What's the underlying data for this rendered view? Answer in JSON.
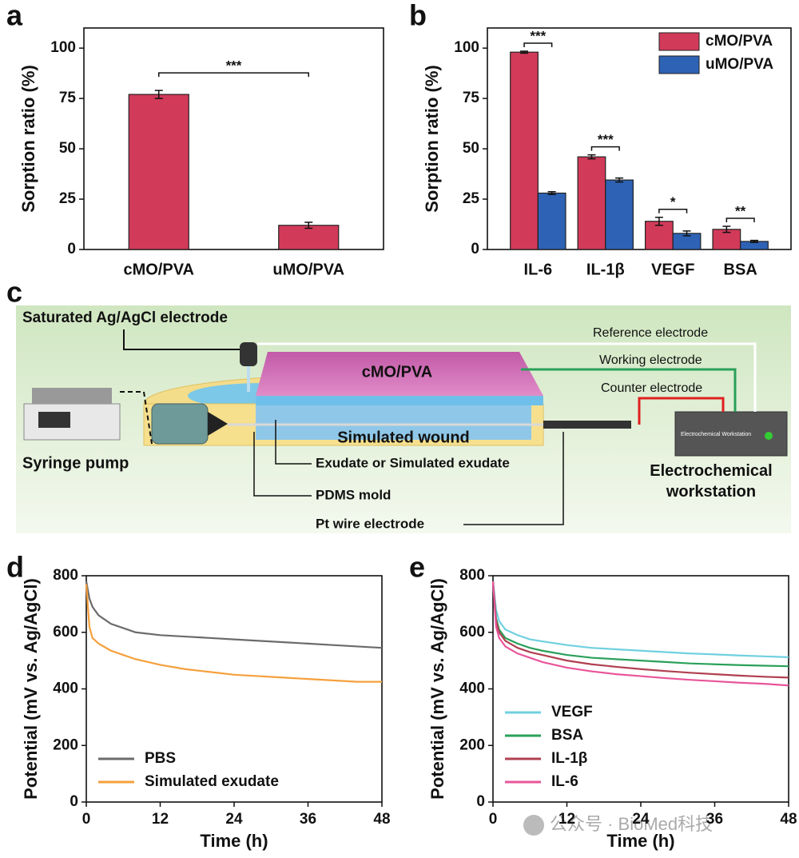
{
  "chart_data": [
    {
      "panel": "a",
      "type": "bar",
      "ylabel": "Sorption ratio (%)",
      "categories": [
        "cMO/PVA",
        "uMO/PVA"
      ],
      "values": [
        77,
        12
      ],
      "errors": [
        2,
        1.5
      ],
      "color": "#d23a5a",
      "significance": "***",
      "ylim": [
        0,
        110
      ],
      "yticks": [
        0,
        25,
        50,
        75,
        100
      ]
    },
    {
      "panel": "b",
      "type": "bar",
      "ylabel": "Sorption ratio (%)",
      "categories": [
        "IL-6",
        "IL-1β",
        "VEGF",
        "BSA"
      ],
      "series": [
        {
          "name": "cMO/PVA",
          "color": "#d23a5a",
          "values": [
            98,
            46,
            14,
            10
          ],
          "errors": [
            0.5,
            1,
            2,
            1.5
          ]
        },
        {
          "name": "uMO/PVA",
          "color": "#2e62b5",
          "values": [
            28,
            34.5,
            8,
            4
          ],
          "errors": [
            0.7,
            1,
            1.2,
            0.5
          ]
        }
      ],
      "significance": [
        "***",
        "***",
        "*",
        "**"
      ],
      "legend": "upper right",
      "ylim": [
        0,
        110
      ],
      "yticks": [
        0,
        25,
        50,
        75,
        100
      ]
    },
    {
      "panel": "d",
      "type": "line",
      "xlabel": "Time (h)",
      "ylabel": "Potential (mV vs. Ag/AgCl)",
      "x": [
        0,
        0.5,
        1,
        2,
        4,
        6,
        8,
        12,
        16,
        20,
        24,
        28,
        32,
        36,
        40,
        44,
        48
      ],
      "series": [
        {
          "name": "PBS",
          "color": "#6b6b6b",
          "values": [
            780,
            720,
            690,
            660,
            630,
            615,
            600,
            590,
            585,
            580,
            575,
            570,
            565,
            560,
            555,
            550,
            545
          ]
        },
        {
          "name": "Simulated exudate",
          "color": "#f5a03c",
          "values": [
            770,
            620,
            580,
            560,
            535,
            520,
            505,
            485,
            470,
            460,
            450,
            445,
            440,
            435,
            430,
            425,
            425
          ]
        }
      ],
      "legend": "lower left",
      "xlim": [
        0,
        48
      ],
      "xticks": [
        0,
        12,
        24,
        36,
        48
      ],
      "ylim": [
        0,
        800
      ],
      "yticks": [
        0,
        200,
        400,
        600,
        800
      ]
    },
    {
      "panel": "e",
      "type": "line",
      "xlabel": "Time (h)",
      "ylabel": "Potential (mV vs. Ag/AgCl)",
      "x": [
        0,
        0.5,
        1,
        2,
        4,
        6,
        8,
        12,
        16,
        20,
        24,
        28,
        32,
        36,
        40,
        44,
        48
      ],
      "series": [
        {
          "name": "VEGF",
          "color": "#6fd0e0",
          "values": [
            780,
            680,
            640,
            610,
            590,
            575,
            568,
            555,
            545,
            540,
            535,
            530,
            525,
            522,
            518,
            515,
            512
          ]
        },
        {
          "name": "BSA",
          "color": "#2aa05a",
          "values": [
            780,
            650,
            610,
            580,
            560,
            545,
            535,
            520,
            510,
            505,
            500,
            495,
            490,
            487,
            484,
            482,
            480
          ]
        },
        {
          "name": "IL-1β",
          "color": "#b04050",
          "values": [
            780,
            640,
            600,
            570,
            545,
            530,
            520,
            500,
            487,
            478,
            470,
            463,
            457,
            452,
            447,
            443,
            440
          ]
        },
        {
          "name": "IL-6",
          "color": "#e8559a",
          "values": [
            780,
            620,
            580,
            550,
            525,
            510,
            495,
            475,
            462,
            452,
            445,
            438,
            432,
            427,
            422,
            418,
            412
          ]
        }
      ],
      "legend": "lower left",
      "xlim": [
        0,
        48
      ],
      "xticks": [
        0,
        12,
        24,
        36,
        48
      ],
      "ylim": [
        0,
        800
      ],
      "yticks": [
        0,
        200,
        400,
        600,
        800
      ]
    }
  ],
  "diagram": {
    "panel": "c",
    "labels": {
      "ag_electrode": "Saturated Ag/AgCl electrode",
      "reference": "Reference electrode",
      "working": "Working electrode",
      "counter": "Counter electrode",
      "material": "cMO/PVA",
      "wound": "Simulated wound",
      "exudate": "Exudate or Simulated exudate",
      "mold": "PDMS mold",
      "pt_wire": "Pt wire electrode",
      "pump": "Syringe pump",
      "workstation": "Electrochemical workstation",
      "device": "Electrochemical  Workstation"
    }
  },
  "watermark": "公众号 · BioMed科技"
}
